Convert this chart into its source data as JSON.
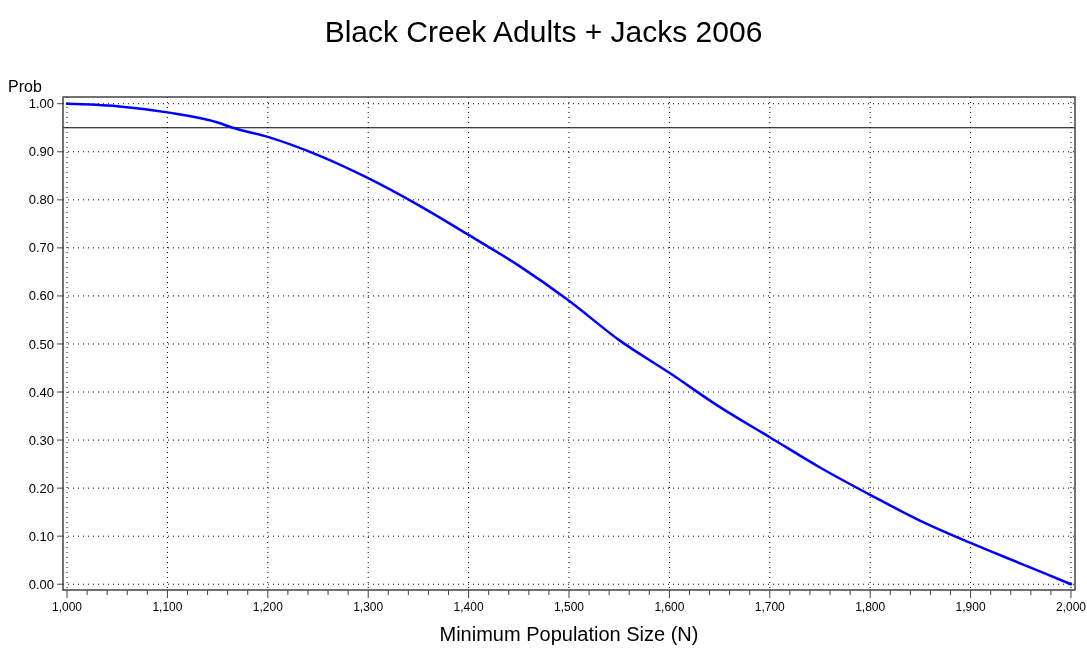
{
  "chart_data": {
    "type": "line",
    "title": "Black Creek Adults + Jacks 2006",
    "xlabel": "Minimum Population Size (N)",
    "ylabel": "Prob",
    "x": [
      1000,
      1050,
      1100,
      1150,
      1165,
      1200,
      1250,
      1300,
      1350,
      1400,
      1450,
      1500,
      1550,
      1600,
      1650,
      1700,
      1750,
      1800,
      1850,
      1900,
      1950,
      2000
    ],
    "series": [
      {
        "color": "#0000ff",
        "values": [
          1.0,
          0.995,
          0.982,
          0.961,
          0.95,
          0.931,
          0.893,
          0.845,
          0.789,
          0.727,
          0.663,
          0.59,
          0.508,
          0.44,
          0.369,
          0.306,
          0.243,
          0.186,
          0.132,
          0.086,
          0.043,
          0.0
        ]
      }
    ],
    "xlim": [
      996,
      2004
    ],
    "ylim": [
      -0.012,
      1.014
    ],
    "xticks": [
      {
        "value": 1000,
        "label": "1,000"
      },
      {
        "value": 1020,
        "label": null
      },
      {
        "value": 1040,
        "label": null
      },
      {
        "value": 1060,
        "label": null
      },
      {
        "value": 1080,
        "label": null
      },
      {
        "value": 1100,
        "label": "1,100"
      },
      {
        "value": 1120,
        "label": null
      },
      {
        "value": 1140,
        "label": null
      },
      {
        "value": 1160,
        "label": null
      },
      {
        "value": 1180,
        "label": null
      },
      {
        "value": 1200,
        "label": "1,200"
      },
      {
        "value": 1220,
        "label": null
      },
      {
        "value": 1240,
        "label": null
      },
      {
        "value": 1260,
        "label": null
      },
      {
        "value": 1280,
        "label": null
      },
      {
        "value": 1300,
        "label": "1,300"
      },
      {
        "value": 1320,
        "label": null
      },
      {
        "value": 1340,
        "label": null
      },
      {
        "value": 1360,
        "label": null
      },
      {
        "value": 1380,
        "label": null
      },
      {
        "value": 1400,
        "label": "1,400"
      },
      {
        "value": 1420,
        "label": null
      },
      {
        "value": 1440,
        "label": null
      },
      {
        "value": 1460,
        "label": null
      },
      {
        "value": 1480,
        "label": null
      },
      {
        "value": 1500,
        "label": "1,500"
      },
      {
        "value": 1520,
        "label": null
      },
      {
        "value": 1540,
        "label": null
      },
      {
        "value": 1560,
        "label": null
      },
      {
        "value": 1580,
        "label": null
      },
      {
        "value": 1600,
        "label": "1,600"
      },
      {
        "value": 1620,
        "label": null
      },
      {
        "value": 1640,
        "label": null
      },
      {
        "value": 1660,
        "label": null
      },
      {
        "value": 1680,
        "label": null
      },
      {
        "value": 1700,
        "label": "1,700"
      },
      {
        "value": 1720,
        "label": null
      },
      {
        "value": 1740,
        "label": null
      },
      {
        "value": 1760,
        "label": null
      },
      {
        "value": 1780,
        "label": null
      },
      {
        "value": 1800,
        "label": "1,800"
      },
      {
        "value": 1820,
        "label": null
      },
      {
        "value": 1840,
        "label": null
      },
      {
        "value": 1860,
        "label": null
      },
      {
        "value": 1880,
        "label": null
      },
      {
        "value": 1900,
        "label": "1,900"
      },
      {
        "value": 1920,
        "label": null
      },
      {
        "value": 1940,
        "label": null
      },
      {
        "value": 1960,
        "label": null
      },
      {
        "value": 1980,
        "label": null
      },
      {
        "value": 2000,
        "label": "2,000"
      }
    ],
    "yticks": [
      {
        "value": 0,
        "label": "0.00"
      },
      {
        "value": 0.1,
        "label": "0.10"
      },
      {
        "value": 0.2,
        "label": "0.20"
      },
      {
        "value": 0.3,
        "label": "0.30"
      },
      {
        "value": 0.4,
        "label": "0.40"
      },
      {
        "value": 0.5,
        "label": "0.50"
      },
      {
        "value": 0.6,
        "label": "0.60"
      },
      {
        "value": 0.7,
        "label": "0.70"
      },
      {
        "value": 0.8,
        "label": "0.80"
      },
      {
        "value": 0.9,
        "label": "0.90"
      },
      {
        "value": 1.0,
        "label": "1.00"
      }
    ],
    "ref_lines": [
      {
        "axis": "y",
        "value": 0.95,
        "color": "#000000"
      }
    ],
    "grid": true,
    "line_style": "solid",
    "marker": "none"
  }
}
